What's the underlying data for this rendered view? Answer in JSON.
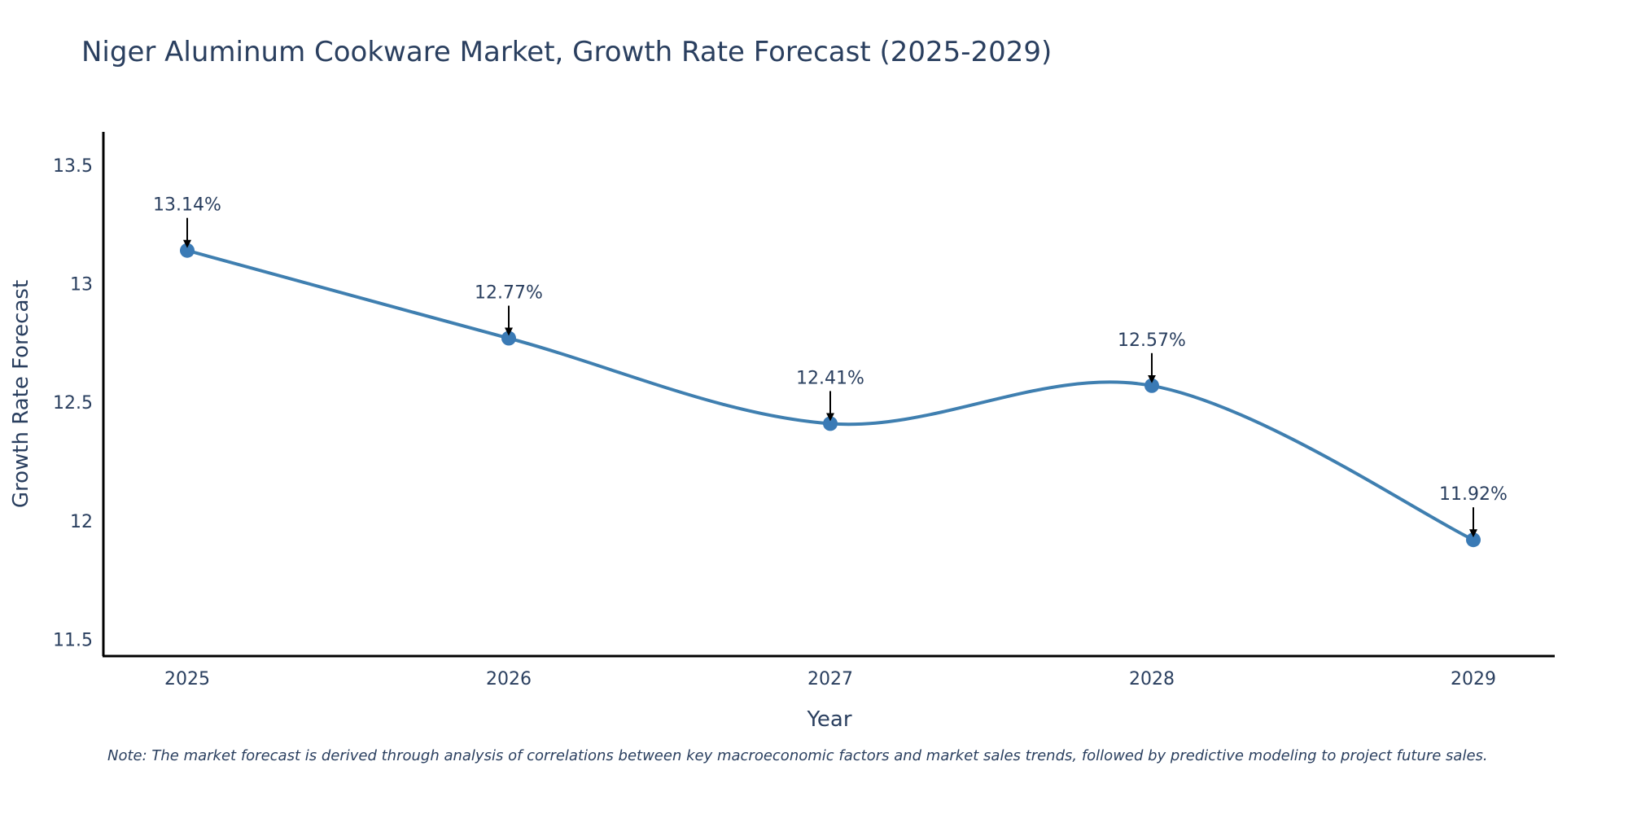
{
  "chart_data": {
    "type": "line",
    "title": "Niger Aluminum Cookware Market, Growth Rate Forecast (2025-2029)",
    "xlabel": "Year",
    "ylabel": "Growth Rate Forecast",
    "categories": [
      "2025",
      "2026",
      "2027",
      "2028",
      "2029"
    ],
    "values": [
      13.14,
      12.77,
      12.41,
      12.57,
      11.92
    ],
    "data_labels": [
      "13.14%",
      "12.77%",
      "12.41%",
      "12.57%",
      "11.92%"
    ],
    "ylim": [
      11.43,
      13.64
    ],
    "yticks": [
      11.5,
      12,
      12.5,
      13,
      13.5
    ],
    "ytick_labels": [
      "11.5",
      "12",
      "12.5",
      "13",
      "13.5"
    ],
    "grid": false,
    "line_shape": "spline",
    "line_color": "#3f7fb0",
    "marker_color": "#3a7ab5",
    "annotation_arrow_color": "#000000",
    "note": "Note: The market forecast is derived through analysis of correlations between key macroeconomic factors and market sales trends, followed by predictive modeling to project future sales."
  }
}
